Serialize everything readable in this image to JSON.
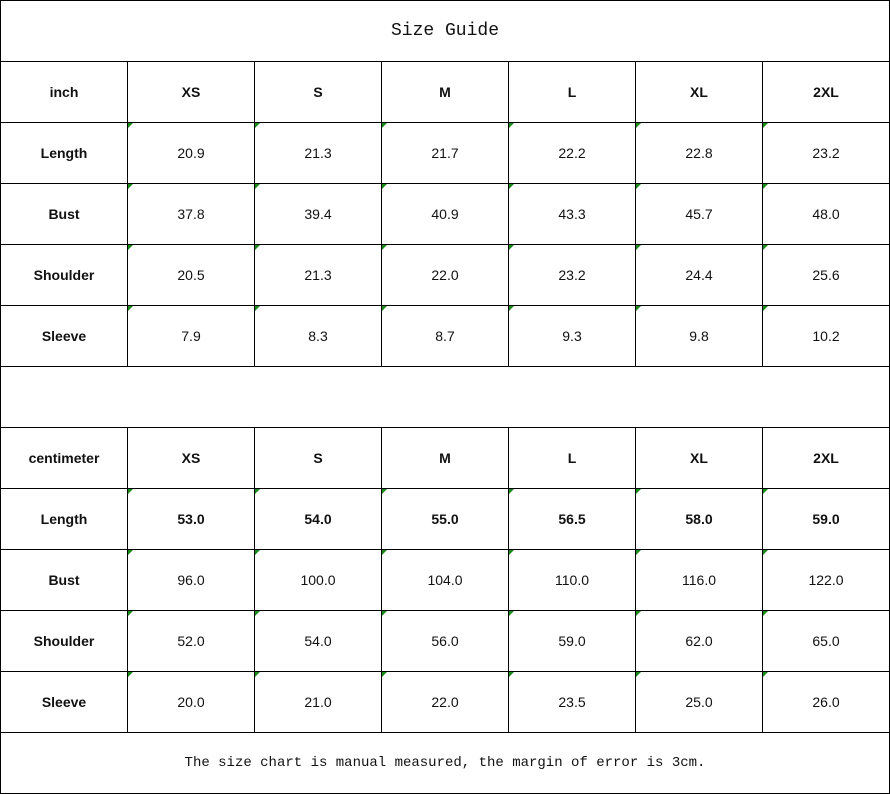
{
  "title": "Size Guide",
  "tables": [
    {
      "unit": "inch",
      "sizes": [
        "XS",
        "S",
        "M",
        "L",
        "XL",
        "2XL"
      ],
      "rows": [
        {
          "label": "Length",
          "values": [
            "20.9",
            "21.3",
            "21.7",
            "22.2",
            "22.8",
            "23.2"
          ],
          "bold": false
        },
        {
          "label": "Bust",
          "values": [
            "37.8",
            "39.4",
            "40.9",
            "43.3",
            "45.7",
            "48.0"
          ],
          "bold": false
        },
        {
          "label": "Shoulder",
          "values": [
            "20.5",
            "21.3",
            "22.0",
            "23.2",
            "24.4",
            "25.6"
          ],
          "bold": false
        },
        {
          "label": "Sleeve",
          "values": [
            "7.9",
            "8.3",
            "8.7",
            "9.3",
            "9.8",
            "10.2"
          ],
          "bold": false
        }
      ]
    },
    {
      "unit": "centimeter",
      "sizes": [
        "XS",
        "S",
        "M",
        "L",
        "XL",
        "2XL"
      ],
      "rows": [
        {
          "label": "Length",
          "values": [
            "53.0",
            "54.0",
            "55.0",
            "56.5",
            "58.0",
            "59.0"
          ],
          "bold": true
        },
        {
          "label": "Bust",
          "values": [
            "96.0",
            "100.0",
            "104.0",
            "110.0",
            "116.0",
            "122.0"
          ],
          "bold": false
        },
        {
          "label": "Shoulder",
          "values": [
            "52.0",
            "54.0",
            "56.0",
            "59.0",
            "62.0",
            "65.0"
          ],
          "bold": false
        },
        {
          "label": "Sleeve",
          "values": [
            "20.0",
            "21.0",
            "22.0",
            "23.5",
            "25.0",
            "26.0"
          ],
          "bold": false
        }
      ]
    }
  ],
  "note": "The size chart is manual measured, the margin of error is 3cm.",
  "colors": {
    "cell_marker": "#1a8a1a",
    "border": "#000000"
  }
}
